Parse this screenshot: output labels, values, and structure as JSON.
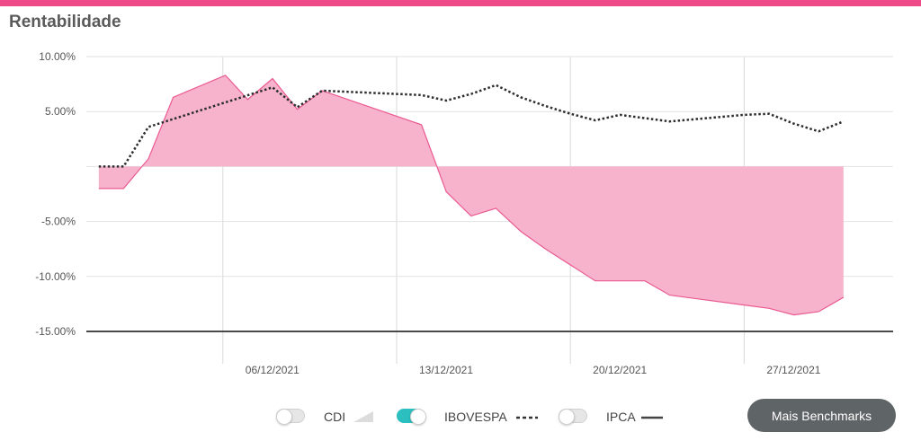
{
  "header": {
    "title": "Rentabilidade"
  },
  "colors": {
    "accent": "#ee4a87",
    "area_fill": "#f7b3cc",
    "area_stroke": "#ea5a91",
    "toggle_on": "#2bbfbf"
  },
  "chart_data": {
    "type": "area",
    "ylim": [
      -15,
      10
    ],
    "y_ticks": [
      "10.00%",
      "5.00%",
      "-5.00%",
      "-10.00%",
      "-15.00%"
    ],
    "y_tick_values": [
      10,
      5,
      -5,
      -10,
      -15
    ],
    "x_ticks": [
      "06/12/2021",
      "13/12/2021",
      "20/12/2021",
      "27/12/2021"
    ],
    "x_tick_days": [
      5,
      12,
      19,
      26
    ],
    "xlim": [
      -0.5,
      32
    ],
    "grid": true,
    "series": [
      {
        "style": "area",
        "x": [
          0,
          1,
          2,
          3,
          5.1,
          6,
          7,
          8,
          9,
          13,
          14,
          15,
          16,
          17,
          18,
          20,
          21,
          22,
          23,
          26,
          27,
          28,
          29,
          30
        ],
        "values": [
          -2,
          -2,
          0.7,
          6.3,
          8.3,
          6.1,
          8.0,
          5.2,
          6.9,
          3.8,
          -2.3,
          -4.5,
          -3.8,
          -5.9,
          -7.5,
          -10.4,
          -10.4,
          -10.4,
          -11.7,
          -12.6,
          -12.9,
          -13.5,
          -13.2,
          -11.9
        ]
      },
      {
        "style": "dotted",
        "x": [
          0,
          1,
          2,
          7,
          8,
          9,
          13,
          14,
          15,
          16,
          17,
          18,
          19,
          20,
          21,
          22,
          23,
          26,
          27,
          28,
          29,
          30
        ],
        "values": [
          0,
          0,
          3.6,
          7.2,
          5.4,
          6.9,
          6.5,
          6.0,
          6.6,
          7.4,
          6.3,
          5.5,
          4.8,
          4.2,
          4.7,
          4.4,
          4.1,
          4.7,
          4.8,
          3.9,
          3.2,
          4.1
        ]
      }
    ]
  },
  "legend": {
    "items": [
      {
        "label": "CDI",
        "state": "off",
        "mark": "area-triangle-icon"
      },
      {
        "label": "IBOVESPA",
        "state": "on",
        "mark": "dashed-line-icon"
      },
      {
        "label": "IPCA",
        "state": "off",
        "mark": "solid-line-icon"
      }
    ]
  },
  "benchmarks_button": {
    "label": "Mais Benchmarks"
  }
}
